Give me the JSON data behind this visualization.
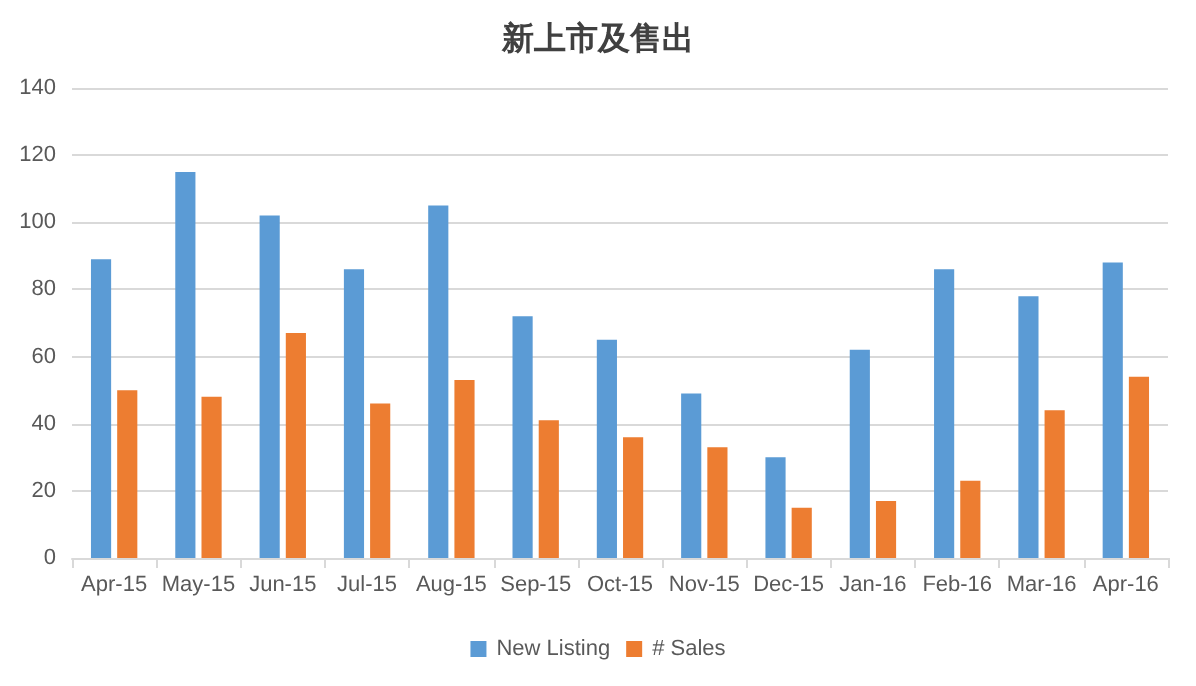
{
  "chart_data": {
    "type": "bar",
    "title": "新上市及售出",
    "categories": [
      "Apr-15",
      "May-15",
      "Jun-15",
      "Jul-15",
      "Aug-15",
      "Sep-15",
      "Oct-15",
      "Nov-15",
      "Dec-15",
      "Jan-16",
      "Feb-16",
      "Mar-16",
      "Apr-16"
    ],
    "series": [
      {
        "name": "New Listing",
        "color": "#5b9bd5",
        "values": [
          89,
          115,
          102,
          86,
          105,
          72,
          65,
          49,
          30,
          62,
          86,
          78,
          88
        ]
      },
      {
        "name": "# Sales",
        "color": "#ed7d31",
        "values": [
          50,
          48,
          67,
          46,
          53,
          41,
          36,
          33,
          15,
          17,
          23,
          44,
          54
        ]
      }
    ],
    "ylim": [
      0,
      140
    ],
    "yticks": [
      0,
      20,
      40,
      60,
      80,
      100,
      120,
      140
    ],
    "grid": "y",
    "legend": "bottom"
  }
}
